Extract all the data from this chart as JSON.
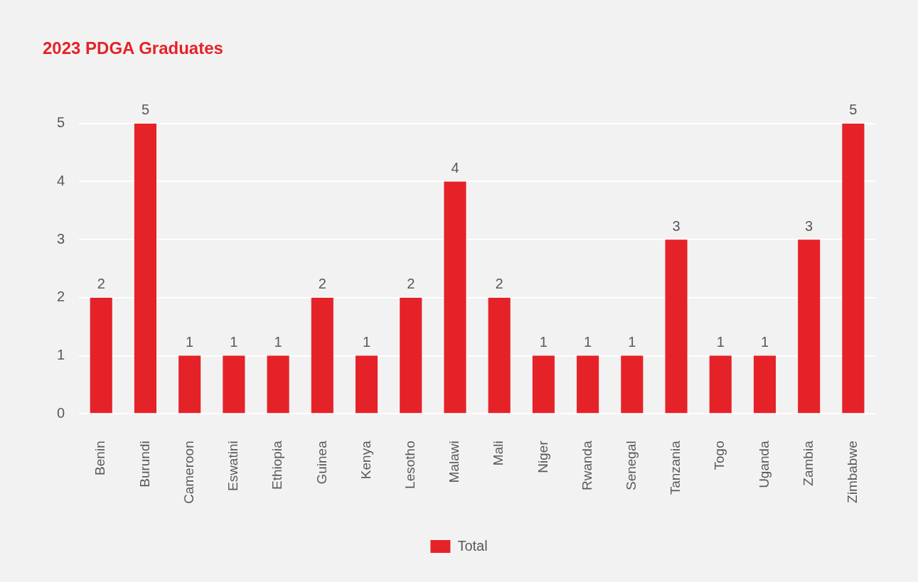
{
  "chart_data": {
    "type": "bar",
    "title": "2023 PDGA Graduates",
    "categories": [
      "Benin",
      "Burundi",
      "Cameroon",
      "Eswatini",
      "Ethiopia",
      "Guinea",
      "Kenya",
      "Lesotho",
      "Malawi",
      "Mali",
      "Niger",
      "Rwanda",
      "Senegal",
      "Tanzania",
      "Togo",
      "Uganda",
      "Zambia",
      "Zimbabwe"
    ],
    "series": [
      {
        "name": "Total",
        "color": "#e52228",
        "values": [
          2,
          5,
          1,
          1,
          1,
          2,
          1,
          2,
          4,
          2,
          1,
          1,
          1,
          3,
          1,
          1,
          3,
          5
        ]
      }
    ],
    "ylim": [
      0,
      5
    ],
    "yticks": [
      0,
      1,
      2,
      3,
      4,
      5
    ],
    "grid": "y",
    "legend": "bottom",
    "data_labels": true
  }
}
